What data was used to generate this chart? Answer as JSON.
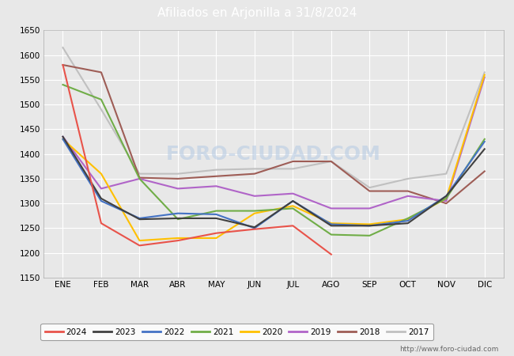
{
  "title": "Afiliados en Arjonilla a 31/8/2024",
  "title_bg_color": "#5b9bd5",
  "title_text_color": "#ffffff",
  "months": [
    "ENE",
    "FEB",
    "MAR",
    "ABR",
    "MAY",
    "JUN",
    "JUL",
    "AGO",
    "SEP",
    "OCT",
    "NOV",
    "DIC"
  ],
  "ylim": [
    1150,
    1650
  ],
  "yticks": [
    1150,
    1200,
    1250,
    1300,
    1350,
    1400,
    1450,
    1500,
    1550,
    1600,
    1650
  ],
  "fig_bg_color": "#e8e8e8",
  "plot_bg_color": "#e8e8e8",
  "watermark": "FORO-CIUDAD.COM",
  "url": "http://www.foro-ciudad.com",
  "series": {
    "2024": {
      "color": "#e8534a",
      "data": [
        1580,
        1260,
        1215,
        1225,
        1240,
        1248,
        1255,
        1197,
        null,
        null,
        null,
        null
      ]
    },
    "2023": {
      "color": "#404040",
      "data": [
        1435,
        1310,
        1268,
        1270,
        1270,
        1252,
        1305,
        1255,
        1255,
        1260,
        1315,
        1410
      ]
    },
    "2022": {
      "color": "#4472c4",
      "data": [
        1430,
        1305,
        1270,
        1280,
        1278,
        1250,
        1305,
        1258,
        1255,
        1265,
        1315,
        1425
      ]
    },
    "2021": {
      "color": "#70ad47",
      "data": [
        1540,
        1510,
        1350,
        1268,
        1285,
        1285,
        1290,
        1237,
        1235,
        1270,
        1310,
        1430
      ]
    },
    "2020": {
      "color": "#ffc000",
      "data": [
        1430,
        1360,
        1225,
        1230,
        1230,
        1280,
        1295,
        1260,
        1258,
        1268,
        1310,
        1560
      ]
    },
    "2019": {
      "color": "#b064c8",
      "data": [
        1435,
        1330,
        1350,
        1330,
        1335,
        1315,
        1320,
        1290,
        1290,
        1315,
        1305,
        1555
      ]
    },
    "2018": {
      "color": "#9e5d56",
      "data": [
        1580,
        1565,
        1352,
        1350,
        1355,
        1360,
        1385,
        1385,
        1325,
        1325,
        1300,
        1365
      ]
    },
    "2017": {
      "color": "#c0c0c0",
      "data": [
        1615,
        1490,
        1360,
        1360,
        1368,
        1370,
        1370,
        1385,
        1332,
        1350,
        1360,
        1565
      ]
    }
  }
}
